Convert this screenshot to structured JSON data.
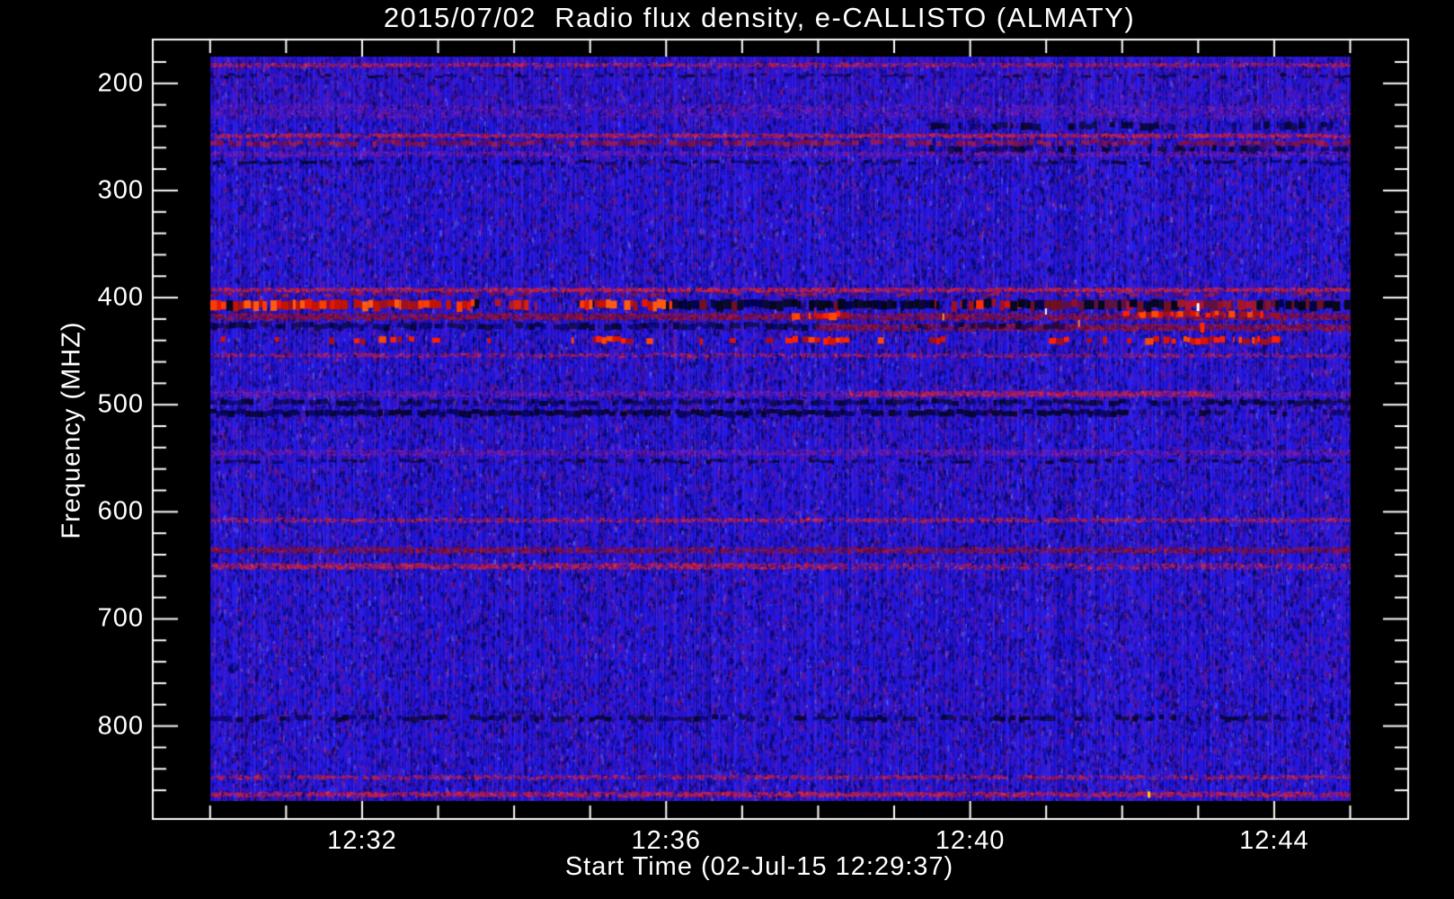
{
  "title": "2015/07/02  Radio flux density, e-CALLISTO (ALMATY)",
  "chart_data": {
    "type": "heatmap",
    "title": "2015/07/02  Radio flux density, e-CALLISTO (ALMATY)",
    "xlabel": "Start Time (02-Jul-15 12:29:37)",
    "ylabel": "Frequency (MHZ)",
    "instrument": "e-CALLISTO",
    "station": "ALMATY",
    "date": "2015/07/02",
    "start_time": "12:29:37",
    "x_tick_labels": [
      "12:32",
      "12:36",
      "12:40",
      "12:44"
    ],
    "x_tick_minutes": [
      32,
      36,
      40,
      44
    ],
    "x_minor_minutes": [
      30,
      31,
      33,
      34,
      35,
      37,
      38,
      39,
      41,
      42,
      43,
      45
    ],
    "y_tick_labels": [
      "200",
      "300",
      "400",
      "500",
      "600",
      "700",
      "800"
    ],
    "y_tick_values": [
      200,
      300,
      400,
      500,
      600,
      700,
      800
    ],
    "y_minor_step_mhz": 20,
    "freq_top_mhz": 175,
    "freq_bottom_mhz": 870,
    "axis_orientation": "frequency increases downward",
    "grid": false,
    "legend": false,
    "colors": {
      "background": "#000000",
      "axis": "#ffffff",
      "base_blue": "#2016e6",
      "bright_red": "#ff2000",
      "dark_red": "#8c1038",
      "interference_black": "#07071d",
      "purple_speckle": "#7a28c8"
    },
    "bands": [
      {
        "f": 182,
        "h": 4,
        "style": "speckle-red",
        "density": 0.45
      },
      {
        "f": 193,
        "h": 3,
        "style": "dark-dash",
        "density": 0.45
      },
      {
        "f": 225,
        "h": 14,
        "style": "purple-speckle",
        "density": 0.22
      },
      {
        "f": 240,
        "h": 8,
        "style": "dark-dash",
        "density": 0.45,
        "x0": 0.63,
        "x1": 1.0
      },
      {
        "f": 248,
        "h": 4,
        "style": "speckle-red",
        "density": 0.7
      },
      {
        "f": 256,
        "h": 6,
        "style": "redline-dim",
        "density": 0.75
      },
      {
        "f": 262,
        "h": 8,
        "style": "dark-dash",
        "density": 0.5,
        "x0": 0.63,
        "x1": 1.0
      },
      {
        "f": 265,
        "h": 5,
        "style": "purple-speckle",
        "density": 0.5
      },
      {
        "f": 274,
        "h": 4,
        "style": "dark-dash",
        "density": 0.5
      },
      {
        "f": 392,
        "h": 4,
        "style": "speckle-red",
        "density": 0.8
      },
      {
        "f": 397,
        "h": 4,
        "style": "redline-dim",
        "density": 0.5
      },
      {
        "f": 417,
        "h": 7,
        "style": "darkred-speckle",
        "density": 0.55
      },
      {
        "f": 417,
        "h": 8,
        "style": "red-dash",
        "density": 0.9,
        "x0": 0.51,
        "x1": 0.56
      },
      {
        "f": 416,
        "h": 7,
        "style": "red-dash",
        "density": 0.85,
        "x0": 0.8,
        "x1": 0.94
      },
      {
        "f": 427,
        "h": 7,
        "style": "dark-dash",
        "density": 0.8,
        "x0": 0.0,
        "x1": 0.53
      },
      {
        "f": 427,
        "h": 7,
        "style": "darkred-speckle",
        "density": 0.6,
        "x0": 0.53,
        "x1": 1.0
      },
      {
        "f": 427,
        "h": 7,
        "style": "dark-dash",
        "density": 0.7,
        "x0": 0.62,
        "x1": 0.75
      },
      {
        "f": 440,
        "h": 7,
        "style": "red-dash",
        "density": 0.15
      },
      {
        "f": 440,
        "h": 7,
        "style": "red-dash",
        "density": 0.5,
        "x0": 0.13,
        "x1": 0.18
      },
      {
        "f": 440,
        "h": 7,
        "style": "red-dash",
        "density": 0.6,
        "x0": 0.3,
        "x1": 0.37
      },
      {
        "f": 440,
        "h": 7,
        "style": "red-dash",
        "density": 0.5,
        "x0": 0.5,
        "x1": 0.56
      },
      {
        "f": 440,
        "h": 7,
        "style": "red-dash",
        "density": 0.5,
        "x0": 0.73,
        "x1": 0.76
      },
      {
        "f": 440,
        "h": 7,
        "style": "red-dash",
        "density": 0.75,
        "x0": 0.82,
        "x1": 0.94
      },
      {
        "f": 453,
        "h": 4,
        "style": "speckle-red",
        "density": 0.35
      },
      {
        "f": 489,
        "h": 6,
        "style": "purple-speckle",
        "density": 0.5
      },
      {
        "f": 489,
        "h": 6,
        "style": "speckle-red",
        "density": 0.5,
        "x0": 0.56,
        "x1": 0.88
      },
      {
        "f": 498,
        "h": 6,
        "style": "dark-dash",
        "density": 0.75
      },
      {
        "f": 508,
        "h": 7,
        "style": "dark",
        "density": 0.85,
        "x0": 0.0,
        "x1": 0.8
      },
      {
        "f": 508,
        "h": 6,
        "style": "dark-dash",
        "density": 0.4,
        "x0": 0.8,
        "x1": 1.0
      },
      {
        "f": 544,
        "h": 6,
        "style": "purple-speckle",
        "density": 0.5
      },
      {
        "f": 553,
        "h": 4,
        "style": "dark-dash",
        "density": 0.5
      },
      {
        "f": 607,
        "h": 4,
        "style": "speckle-red",
        "density": 0.5
      },
      {
        "f": 635,
        "h": 6,
        "style": "darkred-speckle",
        "density": 0.5
      },
      {
        "f": 650,
        "h": 6,
        "style": "speckle-red",
        "density": 0.6,
        "x0": 0.0,
        "x1": 0.55
      },
      {
        "f": 650,
        "h": 6,
        "style": "speckle-red",
        "density": 0.3,
        "x0": 0.55,
        "x1": 1.0
      },
      {
        "f": 793,
        "h": 6,
        "style": "dark-dash",
        "density": 0.6
      },
      {
        "f": 847,
        "h": 4,
        "style": "speckle-red",
        "density": 0.4
      },
      {
        "f": 863,
        "h": 5,
        "style": "speckle-red",
        "density": 0.65
      }
    ],
    "band_a": {
      "f": 407,
      "h": 11,
      "segments": [
        {
          "x0": 0.0,
          "x1": 0.233,
          "type": "red"
        },
        {
          "x0": 0.233,
          "x1": 0.324,
          "type": "mix"
        },
        {
          "x0": 0.324,
          "x1": 0.405,
          "type": "red"
        },
        {
          "x0": 0.405,
          "x1": 0.635,
          "type": "black"
        },
        {
          "x0": 0.635,
          "x1": 0.708,
          "type": "redmix"
        },
        {
          "x0": 0.708,
          "x1": 0.745,
          "type": "black"
        },
        {
          "x0": 0.745,
          "x1": 0.806,
          "type": "darkred"
        },
        {
          "x0": 0.806,
          "x1": 0.848,
          "type": "black"
        },
        {
          "x0": 0.848,
          "x1": 0.934,
          "type": "darkred"
        },
        {
          "x0": 0.934,
          "x1": 1.0,
          "type": "black"
        }
      ]
    },
    "specks": [
      {
        "x": 0.865,
        "f": 409,
        "w": 3,
        "h": 9,
        "color": "#ffffff"
      },
      {
        "x": 0.732,
        "f": 413,
        "w": 2,
        "h": 7,
        "color": "#fff8e8"
      },
      {
        "x": 0.642,
        "f": 418,
        "w": 2,
        "h": 8,
        "color": "#ff9a20"
      },
      {
        "x": 0.761,
        "f": 424,
        "w": 2,
        "h": 8,
        "color": "#ff8030"
      },
      {
        "x": 0.868,
        "f": 428,
        "w": 5,
        "h": 11,
        "color": "#ff2800"
      },
      {
        "x": 0.822,
        "f": 864,
        "w": 3,
        "h": 7,
        "color": "#ffd020"
      }
    ]
  }
}
